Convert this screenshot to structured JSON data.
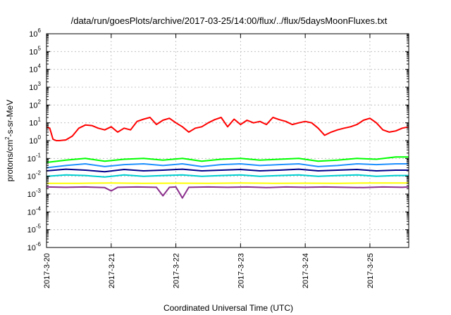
{
  "chart_data": {
    "type": "line",
    "title": "/data/run/goesPlots/archive/2017-03-25/14:00/flux/../flux/5daysMoonFluxes.txt",
    "xlabel": "Coordinated Universal Time (UTC)",
    "ylabel": {
      "prefix": "protons/cm",
      "sup": "2",
      "suffix": "-s-sr-MeV"
    },
    "y_scale": "log",
    "ylim": [
      1e-06,
      1000000.0
    ],
    "x_range_days": [
      0,
      5.6
    ],
    "x_ticks": [
      {
        "day": 0,
        "label": "2017-3-20"
      },
      {
        "day": 1,
        "label": "2017-3-21"
      },
      {
        "day": 2,
        "label": "2017-3-22"
      },
      {
        "day": 3,
        "label": "2017-3-23"
      },
      {
        "day": 4,
        "label": "2017-3-24"
      },
      {
        "day": 5,
        "label": "2017-3-25"
      }
    ],
    "y_ticks": [
      {
        "value": 1e-06,
        "base": "10",
        "exp": "-6"
      },
      {
        "value": 1e-05,
        "base": "10",
        "exp": "-5"
      },
      {
        "value": 0.0001,
        "base": "10",
        "exp": "-4"
      },
      {
        "value": 0.001,
        "base": "10",
        "exp": "-3"
      },
      {
        "value": 0.01,
        "base": "10",
        "exp": "-2"
      },
      {
        "value": 0.1,
        "base": "10",
        "exp": "-1"
      },
      {
        "value": 1,
        "base": "10",
        "exp": "0"
      },
      {
        "value": 10,
        "base": "10",
        "exp": "1"
      },
      {
        "value": 100,
        "base": "10",
        "exp": "2"
      },
      {
        "value": 1000,
        "base": "10",
        "exp": "3"
      },
      {
        "value": 10000,
        "base": "10",
        "exp": "4"
      },
      {
        "value": 100000,
        "base": "10",
        "exp": "5"
      },
      {
        "value": 1000000,
        "base": "10",
        "exp": "6"
      }
    ],
    "grid": true,
    "legend": "none",
    "series": [
      {
        "color": "#ff0000",
        "x": [
          0,
          0.05,
          0.1,
          0.15,
          0.2,
          0.3,
          0.4,
          0.5,
          0.6,
          0.7,
          0.8,
          0.9,
          1.0,
          1.1,
          1.2,
          1.3,
          1.4,
          1.5,
          1.6,
          1.7,
          1.8,
          1.9,
          2.0,
          2.1,
          2.2,
          2.3,
          2.4,
          2.5,
          2.6,
          2.7,
          2.8,
          2.9,
          3.0,
          3.1,
          3.2,
          3.3,
          3.4,
          3.5,
          3.6,
          3.7,
          3.8,
          3.9,
          4.0,
          4.1,
          4.2,
          4.3,
          4.4,
          4.5,
          4.6,
          4.7,
          4.8,
          4.9,
          5.0,
          5.1,
          5.2,
          5.3,
          5.4,
          5.5,
          5.6
        ],
        "y": [
          6,
          5,
          1.2,
          1.0,
          1.0,
          1.1,
          1.8,
          5,
          7.5,
          7,
          5,
          4,
          6,
          3,
          5,
          4,
          12,
          16,
          20,
          8,
          14,
          18,
          10,
          6,
          3,
          5,
          6,
          10,
          15,
          20,
          6,
          16,
          8,
          14,
          10,
          12,
          8,
          20,
          15,
          12,
          8,
          10,
          12,
          10,
          5,
          2,
          3,
          4,
          5,
          6,
          8,
          14,
          18,
          10,
          4,
          3,
          3.5,
          5,
          6
        ]
      },
      {
        "color": "#00ff00",
        "x": [
          0,
          0.3,
          0.6,
          0.9,
          1.2,
          1.5,
          1.8,
          2.1,
          2.4,
          2.7,
          3.0,
          3.3,
          3.6,
          3.9,
          4.2,
          4.5,
          4.8,
          5.1,
          5.4,
          5.6
        ],
        "y": [
          0.06,
          0.08,
          0.1,
          0.07,
          0.09,
          0.1,
          0.08,
          0.1,
          0.07,
          0.09,
          0.1,
          0.08,
          0.09,
          0.1,
          0.07,
          0.08,
          0.1,
          0.09,
          0.12,
          0.12
        ]
      },
      {
        "color": "#1e90ff",
        "x": [
          0,
          0.3,
          0.6,
          0.9,
          1.2,
          1.5,
          1.8,
          2.1,
          2.4,
          2.7,
          3.0,
          3.3,
          3.6,
          3.9,
          4.2,
          4.5,
          4.8,
          5.1,
          5.4,
          5.6
        ],
        "y": [
          0.03,
          0.04,
          0.05,
          0.035,
          0.045,
          0.05,
          0.04,
          0.05,
          0.035,
          0.045,
          0.05,
          0.04,
          0.045,
          0.05,
          0.035,
          0.04,
          0.05,
          0.045,
          0.05,
          0.05
        ]
      },
      {
        "color": "#00008b",
        "x": [
          0,
          0.3,
          0.6,
          0.9,
          1.2,
          1.5,
          1.8,
          2.1,
          2.4,
          2.7,
          3.0,
          3.3,
          3.6,
          3.9,
          4.2,
          4.5,
          4.8,
          5.1,
          5.4,
          5.6
        ],
        "y": [
          0.02,
          0.025,
          0.022,
          0.018,
          0.024,
          0.02,
          0.022,
          0.025,
          0.02,
          0.022,
          0.024,
          0.02,
          0.022,
          0.025,
          0.02,
          0.022,
          0.024,
          0.02,
          0.022,
          0.022
        ]
      },
      {
        "color": "#00ced1",
        "x": [
          0,
          0.3,
          0.6,
          0.9,
          1.2,
          1.5,
          1.8,
          2.1,
          2.4,
          2.7,
          3.0,
          3.3,
          3.6,
          3.9,
          4.2,
          4.5,
          4.8,
          5.1,
          5.4,
          5.6
        ],
        "y": [
          0.01,
          0.012,
          0.011,
          0.009,
          0.012,
          0.01,
          0.011,
          0.012,
          0.01,
          0.011,
          0.012,
          0.01,
          0.011,
          0.012,
          0.01,
          0.011,
          0.012,
          0.01,
          0.011,
          0.011
        ]
      },
      {
        "color": "#ffff00",
        "x": [
          0,
          0.5,
          1.0,
          1.5,
          2.0,
          2.5,
          3.0,
          3.5,
          4.0,
          4.5,
          5.0,
          5.6
        ],
        "y": [
          0.004,
          0.004,
          0.0042,
          0.004,
          0.0041,
          0.004,
          0.0042,
          0.004,
          0.0041,
          0.004,
          0.0042,
          0.0042
        ]
      },
      {
        "color": "#8b2f8b",
        "x": [
          0,
          0.3,
          0.6,
          0.9,
          1.0,
          1.1,
          1.4,
          1.7,
          1.8,
          1.9,
          2.0,
          2.1,
          2.2,
          2.5,
          2.8,
          3.1,
          3.4,
          3.7,
          4.0,
          4.3,
          4.6,
          4.9,
          5.2,
          5.5,
          5.6
        ],
        "y": [
          0.0025,
          0.0024,
          0.0025,
          0.0023,
          0.0015,
          0.0024,
          0.0025,
          0.0024,
          0.0008,
          0.0024,
          0.0025,
          0.0006,
          0.0024,
          0.0025,
          0.0024,
          0.0025,
          0.0023,
          0.0025,
          0.0024,
          0.0025,
          0.0024,
          0.0023,
          0.0025,
          0.0024,
          0.0025
        ]
      }
    ]
  }
}
